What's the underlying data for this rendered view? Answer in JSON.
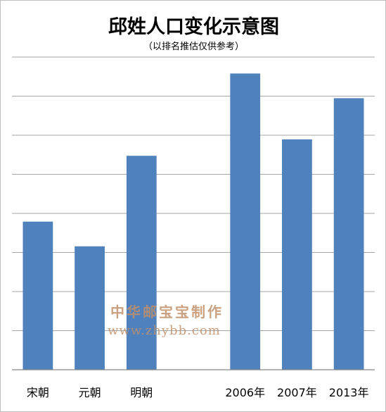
{
  "chart_data": {
    "type": "bar",
    "title": "邱姓人口变化示意图",
    "subtitle": "（以排名推估仅供参考）",
    "categories": [
      "宋朝",
      "元朝",
      "明朝",
      "2006年",
      "2007年",
      "2013年"
    ],
    "values": [
      3.6,
      3.0,
      5.2,
      7.2,
      5.6,
      6.6
    ],
    "ylim": [
      0,
      7.6
    ],
    "grid": true,
    "legend": "none",
    "colors": {
      "bar": "#4f81bd",
      "grid": "#a6a6a6",
      "axis": "#868686"
    }
  },
  "watermark": {
    "line1": "中华邮宝宝制作",
    "line2": "www.zhybb.com"
  }
}
